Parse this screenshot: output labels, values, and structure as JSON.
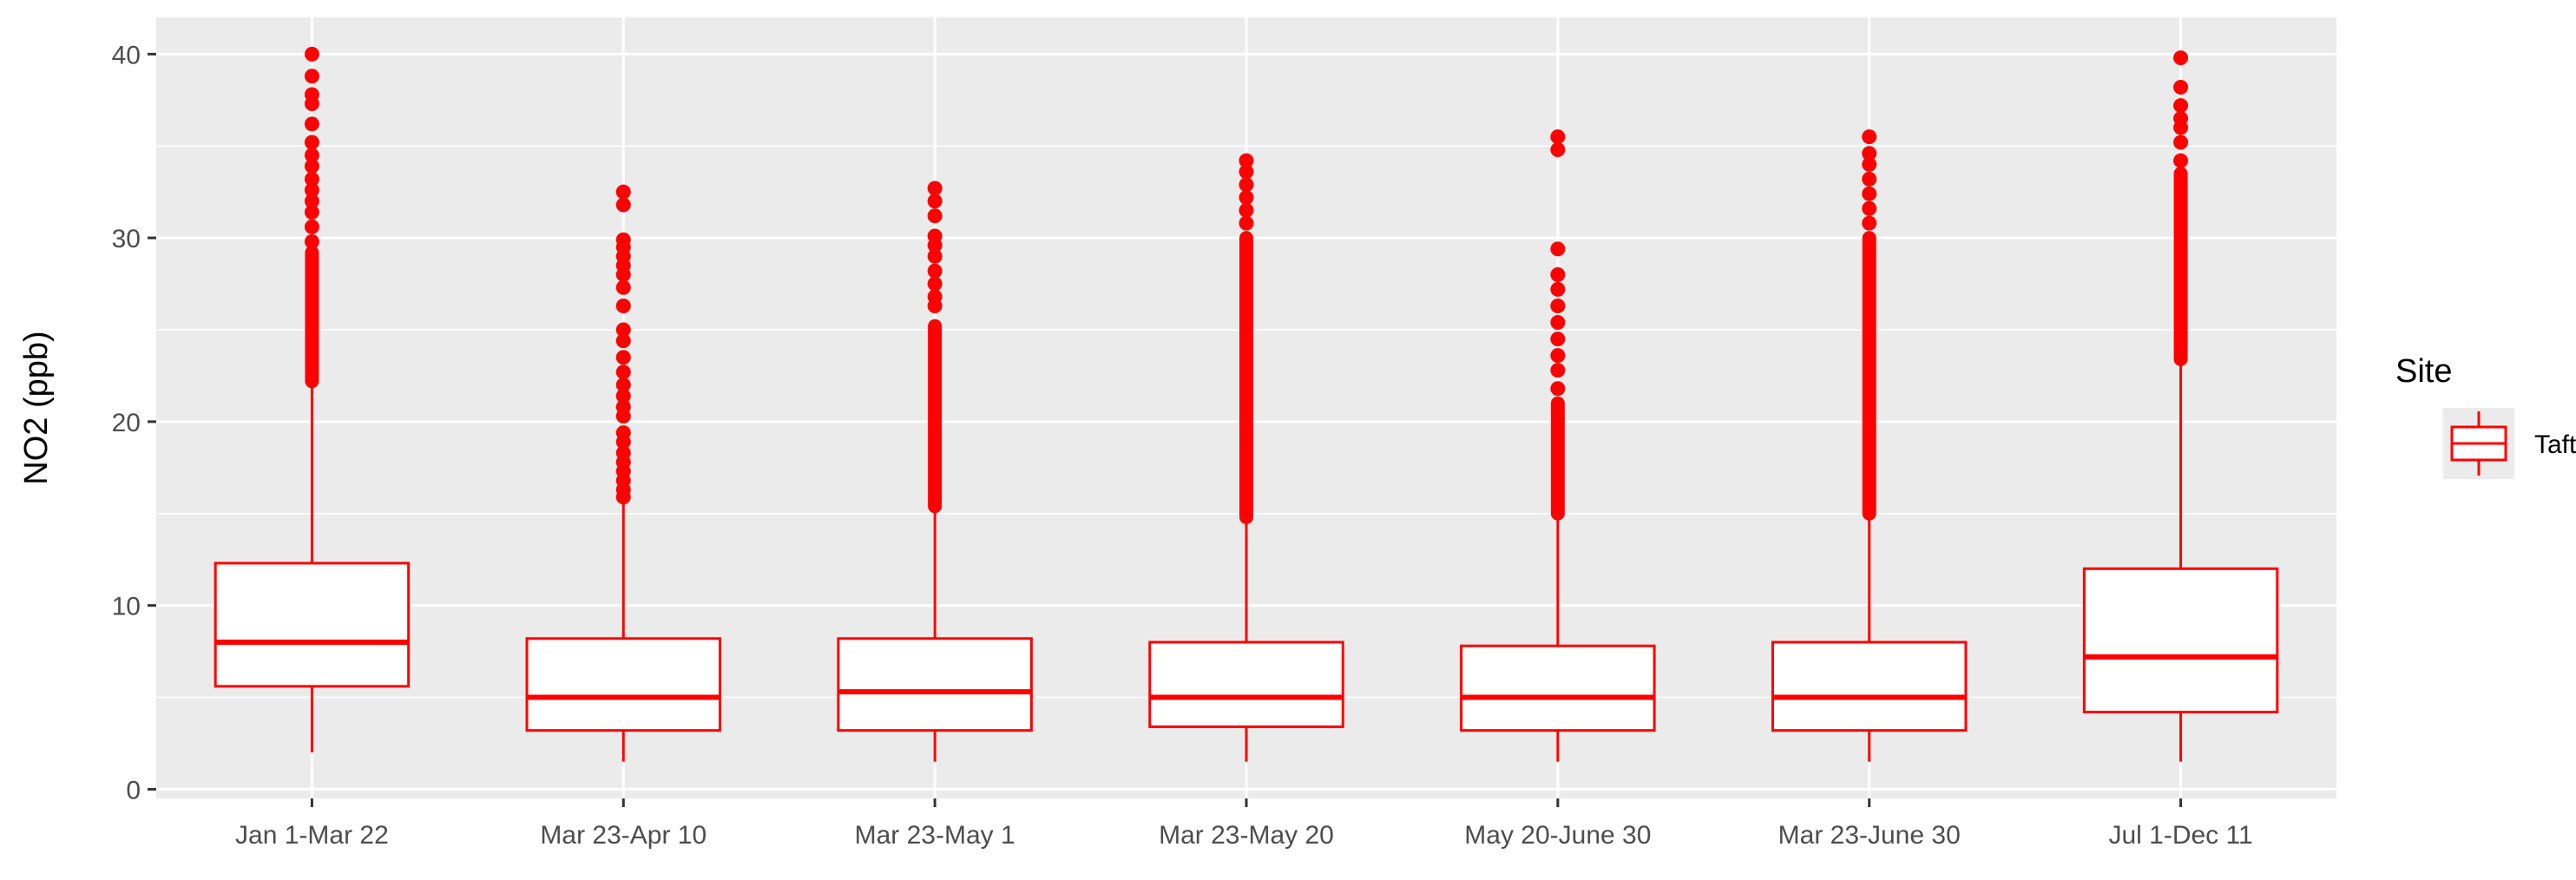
{
  "chart_data": {
    "type": "boxplot",
    "title": "",
    "xlabel": "",
    "ylabel": "NO2 (ppb)",
    "ylim": [
      -0.5,
      42
    ],
    "yticks": [
      0,
      10,
      20,
      30,
      40
    ],
    "grid": true,
    "legend_position": "right",
    "legend_title": "Site",
    "categories": [
      "Jan 1-Mar 22",
      "Mar 23-Apr 10",
      "Mar 23-May 1",
      "Mar 23-May 20",
      "May 20-June 30",
      "Mar 23-June 30",
      "Jul 1-Dec 11"
    ],
    "series": [
      {
        "name": "Taft",
        "color": "#ff0000",
        "boxes": [
          {
            "whisker_low": 2.0,
            "q1": 5.6,
            "median": 8.0,
            "q3": 12.3,
            "whisker_high": 22.2,
            "outliers_dense": [
              22.2,
              29.2
            ],
            "outliers": [
              29.8,
              30.6,
              31.4,
              32.0,
              32.6,
              33.2,
              33.9,
              34.5,
              35.2,
              36.2,
              37.3,
              37.8,
              38.8,
              40.0
            ]
          },
          {
            "whisker_low": 1.5,
            "q1": 3.2,
            "median": 5.0,
            "q3": 8.2,
            "whisker_high": 15.8,
            "outliers_dense": [],
            "outliers": [
              15.9,
              16.3,
              16.8,
              17.3,
              17.8,
              18.3,
              18.9,
              19.4,
              20.3,
              20.8,
              21.4,
              22.0,
              22.7,
              23.5,
              24.4,
              25.0,
              26.3,
              27.3,
              28.0,
              28.5,
              29.0,
              29.5,
              29.9,
              31.8,
              32.5
            ]
          },
          {
            "whisker_low": 1.5,
            "q1": 3.2,
            "median": 5.3,
            "q3": 8.2,
            "whisker_high": 15.4,
            "outliers_dense": [
              15.4,
              25.2
            ],
            "outliers": [
              26.3,
              26.8,
              27.5,
              28.2,
              29.0,
              29.6,
              30.1,
              31.2,
              32.0,
              32.7
            ]
          },
          {
            "whisker_low": 1.5,
            "q1": 3.4,
            "median": 5.0,
            "q3": 8.0,
            "whisker_high": 14.8,
            "outliers_dense": [
              14.8,
              30.0
            ],
            "outliers": [
              30.8,
              31.5,
              32.2,
              32.9,
              33.6,
              34.2
            ]
          },
          {
            "whisker_low": 1.5,
            "q1": 3.2,
            "median": 5.0,
            "q3": 7.8,
            "whisker_high": 15.0,
            "outliers_dense": [
              15.0,
              21.0
            ],
            "outliers": [
              21.8,
              22.8,
              23.6,
              24.5,
              25.4,
              26.3,
              27.2,
              28.0,
              29.4,
              34.8,
              35.5
            ]
          },
          {
            "whisker_low": 1.5,
            "q1": 3.2,
            "median": 5.0,
            "q3": 8.0,
            "whisker_high": 15.0,
            "outliers_dense": [
              15.0,
              30.0
            ],
            "outliers": [
              30.8,
              31.6,
              32.4,
              33.2,
              34.0,
              34.6,
              35.5
            ]
          },
          {
            "whisker_low": 1.5,
            "q1": 4.2,
            "median": 7.2,
            "q3": 12.0,
            "whisker_high": 23.4,
            "outliers_dense": [
              23.4,
              33.5
            ],
            "outliers": [
              34.2,
              35.2,
              36.0,
              36.5,
              37.2,
              38.2,
              39.8
            ]
          }
        ]
      }
    ]
  }
}
